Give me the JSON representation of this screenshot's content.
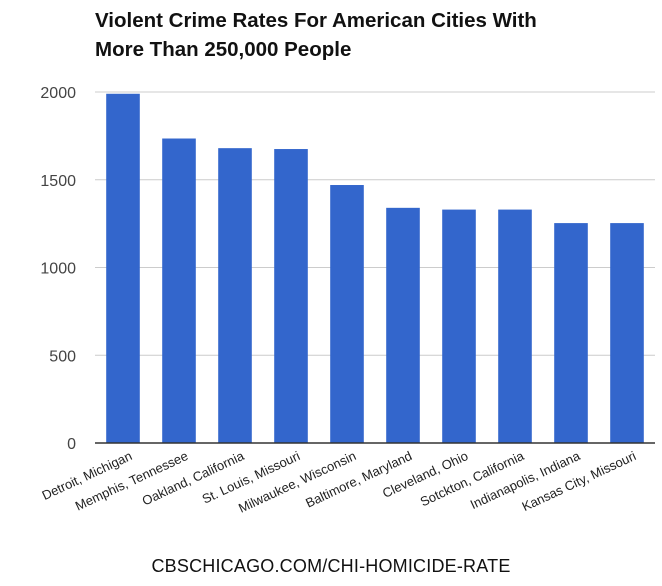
{
  "chart_data": {
    "type": "bar",
    "title": [
      "Violent Crime Rates For American Cities With",
      "More Than 250,000 People"
    ],
    "xlabel": "",
    "ylabel": "",
    "categories": [
      "Detroit, Michigan",
      "Memphis, Tennessee",
      "Oakland, California",
      "St. Louis, Missouri",
      "Milwaukee, Wisconsin",
      "Baltimore, Maryland",
      "Cleveland, Ohio",
      "Sotckton, California",
      "Indianapolis, Indiana",
      "Kansas City, Missouri"
    ],
    "values": [
      1990,
      1735,
      1680,
      1675,
      1470,
      1340,
      1330,
      1330,
      1253,
      1253
    ],
    "ylim": [
      0,
      2000
    ],
    "yticks": [
      "0",
      "500",
      "1000",
      "1500",
      "2000"
    ],
    "grid": true,
    "legend": "none",
    "bar_color": "#3366cc",
    "grid_color": "#cccccc",
    "axis_color": "#333333",
    "text_color": "#444444"
  },
  "source": "CBSCHICAGO.COM/CHI-HOMICIDE-RATE"
}
